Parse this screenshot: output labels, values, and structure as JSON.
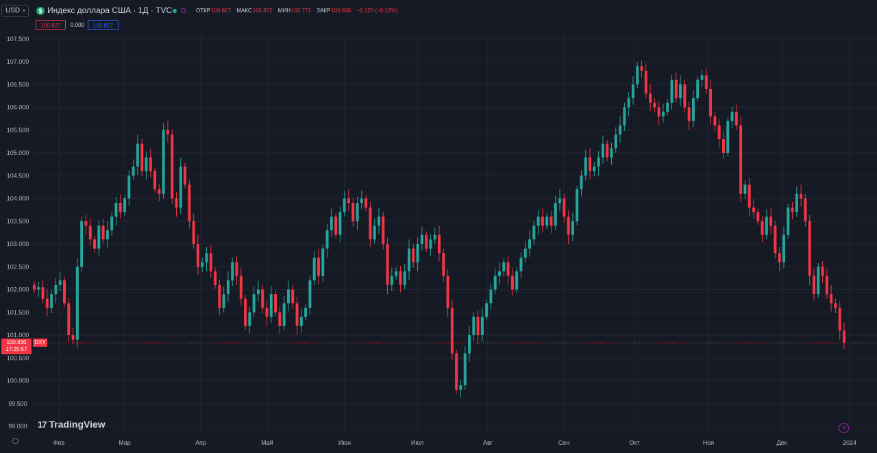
{
  "header": {
    "currency": "USD",
    "symbol_badge": "$",
    "title": "Индекс доллара США · 1Д · TVC",
    "ohlc": [
      {
        "key": "ОТКР",
        "value": "100.867"
      },
      {
        "key": "МАКС",
        "value": "100.872"
      },
      {
        "key": "МИН",
        "value": "100.771"
      },
      {
        "key": "ЗАКР",
        "value": "100.830"
      },
      {
        "key": "",
        "value": "−0.120 (−0.12%)"
      }
    ],
    "sell": "100.827",
    "spread": "0.000",
    "buy": "100.827"
  },
  "last_price": {
    "value": "100.830",
    "countdown": "17:25:57",
    "ticker": "DXY"
  },
  "branding": {
    "logo_mark": "17",
    "logo": "TradingView"
  },
  "colors": {
    "background": "#161a25",
    "up": "#26a69a",
    "down": "#f23645",
    "grid": "#232632",
    "text": "#b2b5be"
  },
  "chart_data": {
    "type": "candlestick",
    "title": "Индекс доллара США · 1Д · TVC",
    "yaxis": {
      "min": 99.0,
      "max": 107.5,
      "ticks": [
        "107.500",
        "107.000",
        "106.500",
        "106.000",
        "105.500",
        "105.000",
        "104.500",
        "104.000",
        "103.500",
        "103.000",
        "102.500",
        "102.000",
        "101.500",
        "101.000",
        "100.500",
        "100.000",
        "99.500",
        "99.000"
      ]
    },
    "xaxis": {
      "ticks": [
        "Фев",
        "Мар",
        "Апр",
        "Май",
        "Июн",
        "Июл",
        "Авг",
        "Сен",
        "Окт",
        "Ноя",
        "Дек",
        "2024"
      ]
    },
    "last_close": 100.83,
    "closes": [
      102.0,
      102.05,
      101.8,
      101.6,
      101.9,
      102.1,
      102.2,
      101.7,
      101.0,
      100.9,
      102.5,
      103.5,
      103.4,
      103.1,
      102.9,
      103.4,
      103.1,
      103.3,
      103.6,
      103.9,
      103.7,
      104.0,
      104.5,
      104.7,
      105.2,
      104.6,
      104.9,
      104.6,
      104.2,
      104.1,
      105.5,
      105.4,
      104.0,
      103.8,
      104.7,
      104.3,
      103.5,
      103.0,
      102.5,
      102.6,
      102.8,
      102.4,
      102.1,
      101.6,
      101.9,
      102.2,
      102.6,
      102.3,
      101.8,
      101.2,
      101.5,
      101.9,
      102.0,
      101.6,
      101.4,
      101.9,
      101.5,
      101.2,
      101.7,
      102.0,
      101.7,
      101.2,
      101.4,
      101.6,
      102.2,
      102.7,
      102.3,
      102.9,
      103.3,
      103.6,
      103.2,
      103.7,
      104.0,
      103.9,
      103.5,
      103.9,
      104.0,
      103.8,
      103.1,
      103.4,
      103.6,
      103.0,
      102.1,
      102.3,
      102.4,
      102.1,
      102.4,
      102.9,
      102.6,
      103.0,
      103.2,
      102.9,
      103.1,
      103.2,
      102.8,
      102.3,
      101.6,
      100.6,
      99.8,
      99.9,
      100.6,
      101.0,
      101.4,
      101.0,
      101.4,
      101.7,
      102.0,
      102.3,
      102.4,
      102.6,
      102.3,
      102.0,
      102.4,
      102.7,
      102.9,
      103.1,
      103.4,
      103.6,
      103.4,
      103.6,
      103.4,
      103.9,
      104.0,
      103.6,
      103.2,
      103.5,
      104.2,
      104.5,
      104.9,
      104.6,
      104.7,
      104.9,
      105.2,
      104.9,
      105.1,
      105.4,
      105.6,
      106.0,
      106.2,
      106.5,
      106.9,
      106.8,
      106.3,
      106.1,
      106.0,
      105.8,
      105.9,
      106.1,
      106.6,
      106.2,
      106.5,
      106.0,
      105.7,
      106.2,
      106.6,
      106.7,
      106.4,
      105.8,
      105.6,
      105.3,
      105.0,
      105.7,
      105.9,
      105.6,
      104.1,
      104.3,
      103.8,
      103.7,
      103.5,
      103.2,
      103.6,
      103.4,
      102.8,
      102.6,
      103.2,
      103.8,
      103.7,
      104.1,
      104.0,
      103.5,
      102.3,
      101.9,
      102.5,
      102.3,
      101.9,
      101.7,
      101.6,
      101.1,
      100.83
    ]
  }
}
